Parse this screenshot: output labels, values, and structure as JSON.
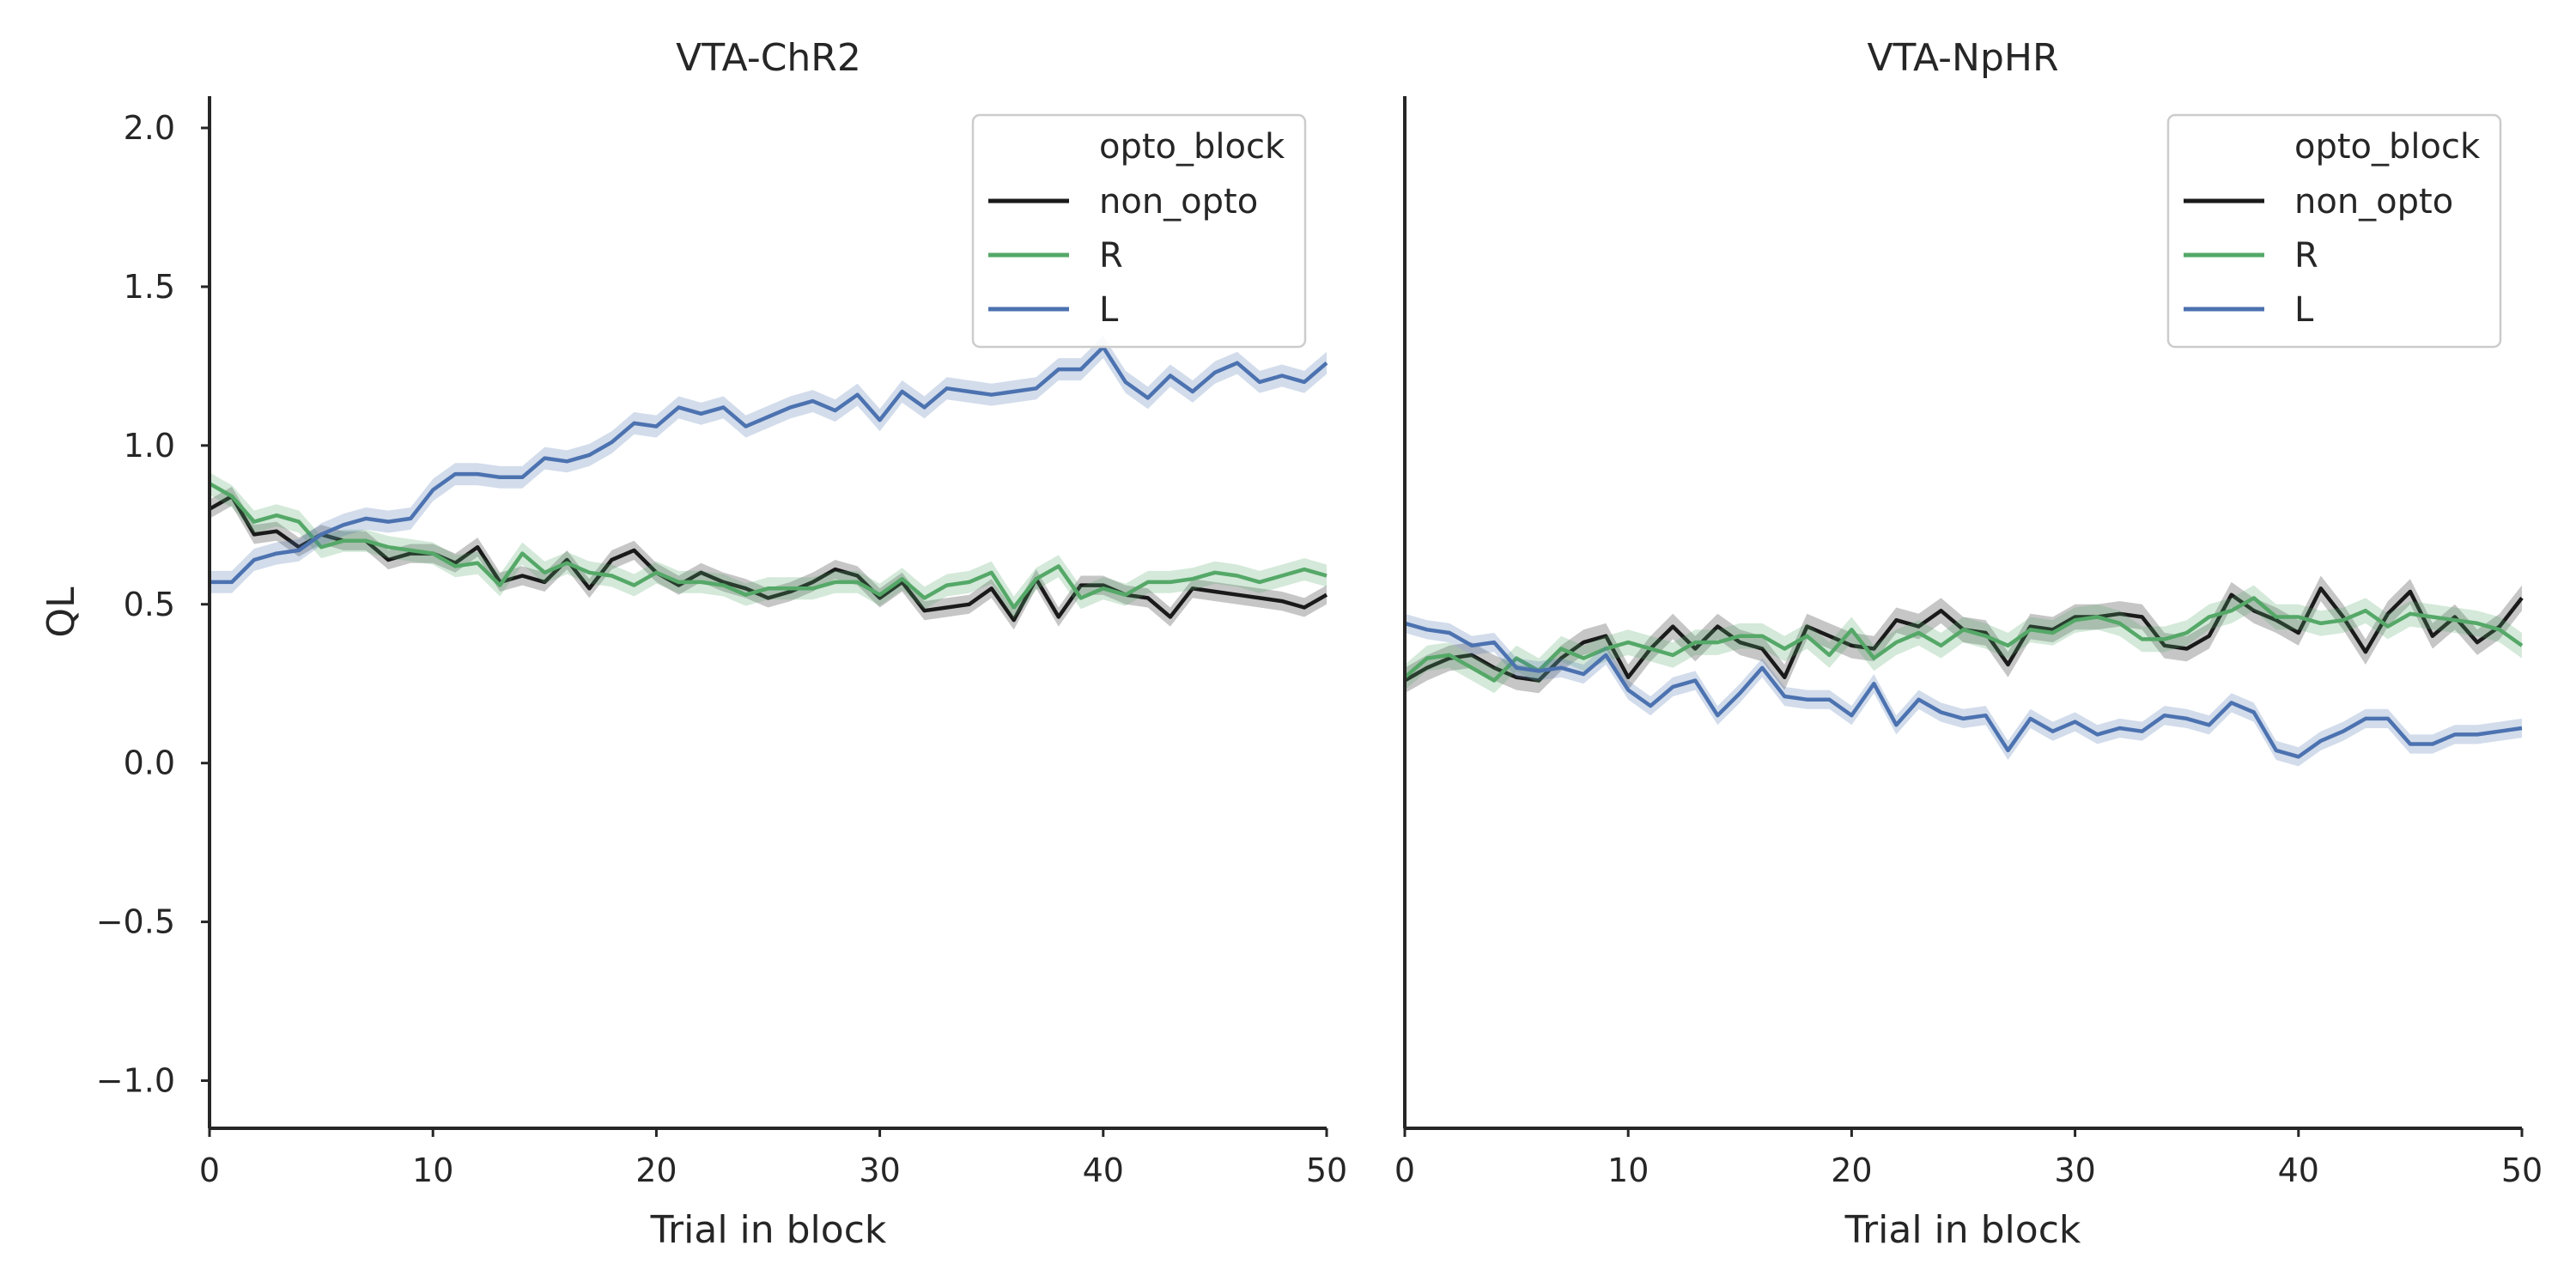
{
  "chart_data": [
    {
      "type": "line",
      "title": "VTA-ChR2",
      "xlabel": "Trial in block",
      "ylabel": "QL",
      "xlim": [
        0,
        50
      ],
      "ylim": [
        -1.15,
        2.1
      ],
      "xticks": [
        0,
        10,
        20,
        30,
        40,
        50
      ],
      "yticks": [
        -1.0,
        -0.5,
        0.0,
        0.5,
        1.0,
        1.5,
        2.0
      ],
      "ytick_labels": [
        "−1.0",
        "−0.5",
        "0.0",
        "0.5",
        "1.0",
        "1.5",
        "2.0"
      ],
      "grid": false,
      "legend": {
        "title": "opto_block",
        "placement": "top-right"
      },
      "x": [
        0,
        1,
        2,
        3,
        4,
        5,
        6,
        7,
        8,
        9,
        10,
        11,
        12,
        13,
        14,
        15,
        16,
        17,
        18,
        19,
        20,
        21,
        22,
        23,
        24,
        25,
        26,
        27,
        28,
        29,
        30,
        31,
        32,
        33,
        34,
        35,
        36,
        37,
        38,
        39,
        40,
        41,
        42,
        43,
        44,
        45,
        46,
        47,
        48,
        49,
        50
      ],
      "series": [
        {
          "name": "non_opto",
          "color": "#1a1a1a",
          "ci": 0.03,
          "values": [
            0.8,
            0.84,
            0.72,
            0.73,
            0.68,
            0.72,
            0.7,
            0.7,
            0.64,
            0.66,
            0.66,
            0.63,
            0.68,
            0.57,
            0.59,
            0.57,
            0.64,
            0.55,
            0.64,
            0.67,
            0.6,
            0.56,
            0.6,
            0.57,
            0.55,
            0.52,
            0.54,
            0.57,
            0.61,
            0.59,
            0.52,
            0.57,
            0.48,
            0.49,
            0.5,
            0.55,
            0.45,
            0.58,
            0.46,
            0.56,
            0.56,
            0.53,
            0.52,
            0.46,
            0.55,
            0.54,
            0.53,
            0.52,
            0.51,
            0.49,
            0.53
          ]
        },
        {
          "name": "R",
          "color": "#55a868",
          "ci": 0.035,
          "values": [
            0.88,
            0.84,
            0.76,
            0.78,
            0.76,
            0.68,
            0.7,
            0.7,
            0.68,
            0.67,
            0.66,
            0.62,
            0.63,
            0.56,
            0.66,
            0.6,
            0.63,
            0.6,
            0.59,
            0.56,
            0.6,
            0.57,
            0.57,
            0.56,
            0.53,
            0.55,
            0.55,
            0.55,
            0.57,
            0.57,
            0.53,
            0.58,
            0.52,
            0.56,
            0.57,
            0.6,
            0.49,
            0.58,
            0.62,
            0.52,
            0.55,
            0.53,
            0.57,
            0.57,
            0.58,
            0.6,
            0.59,
            0.57,
            0.59,
            0.61,
            0.59
          ]
        },
        {
          "name": "L",
          "color": "#4c72b0",
          "ci": 0.035,
          "values": [
            0.57,
            0.57,
            0.64,
            0.66,
            0.67,
            0.72,
            0.75,
            0.77,
            0.76,
            0.77,
            0.86,
            0.91,
            0.91,
            0.9,
            0.9,
            0.96,
            0.95,
            0.97,
            1.01,
            1.07,
            1.06,
            1.12,
            1.1,
            1.12,
            1.06,
            1.09,
            1.12,
            1.14,
            1.11,
            1.16,
            1.08,
            1.17,
            1.12,
            1.18,
            1.17,
            1.16,
            1.17,
            1.18,
            1.24,
            1.24,
            1.31,
            1.2,
            1.15,
            1.22,
            1.17,
            1.23,
            1.26,
            1.2,
            1.22,
            1.2,
            1.26
          ]
        }
      ]
    },
    {
      "type": "line",
      "title": "VTA-NpHR",
      "xlabel": "Trial in block",
      "ylabel": "",
      "xlim": [
        0,
        50
      ],
      "ylim": [
        -1.15,
        2.1
      ],
      "xticks": [
        0,
        10,
        20,
        30,
        40,
        50
      ],
      "grid": false,
      "legend": {
        "title": "opto_block",
        "placement": "top-right"
      },
      "x": [
        0,
        1,
        2,
        3,
        4,
        5,
        6,
        7,
        8,
        9,
        10,
        11,
        12,
        13,
        14,
        15,
        16,
        17,
        18,
        19,
        20,
        21,
        22,
        23,
        24,
        25,
        26,
        27,
        28,
        29,
        30,
        31,
        32,
        33,
        34,
        35,
        36,
        37,
        38,
        39,
        40,
        41,
        42,
        43,
        44,
        45,
        46,
        47,
        48,
        49,
        50
      ],
      "series": [
        {
          "name": "non_opto",
          "color": "#1a1a1a",
          "ci": 0.04,
          "values": [
            0.26,
            0.3,
            0.33,
            0.34,
            0.3,
            0.27,
            0.26,
            0.33,
            0.38,
            0.4,
            0.27,
            0.36,
            0.43,
            0.36,
            0.43,
            0.38,
            0.36,
            0.27,
            0.43,
            0.4,
            0.37,
            0.36,
            0.45,
            0.43,
            0.48,
            0.42,
            0.41,
            0.31,
            0.43,
            0.42,
            0.46,
            0.46,
            0.47,
            0.46,
            0.37,
            0.36,
            0.4,
            0.53,
            0.48,
            0.45,
            0.41,
            0.55,
            0.46,
            0.35,
            0.47,
            0.54,
            0.4,
            0.46,
            0.38,
            0.43,
            0.52
          ]
        },
        {
          "name": "R",
          "color": "#55a868",
          "ci": 0.04,
          "values": [
            0.27,
            0.33,
            0.34,
            0.3,
            0.26,
            0.33,
            0.29,
            0.36,
            0.33,
            0.36,
            0.38,
            0.36,
            0.34,
            0.38,
            0.38,
            0.4,
            0.4,
            0.36,
            0.4,
            0.34,
            0.42,
            0.33,
            0.38,
            0.41,
            0.37,
            0.42,
            0.4,
            0.37,
            0.42,
            0.41,
            0.45,
            0.46,
            0.44,
            0.39,
            0.39,
            0.41,
            0.46,
            0.48,
            0.52,
            0.46,
            0.46,
            0.44,
            0.45,
            0.48,
            0.43,
            0.47,
            0.46,
            0.45,
            0.44,
            0.42,
            0.37
          ]
        },
        {
          "name": "L",
          "color": "#4c72b0",
          "ci": 0.03,
          "values": [
            0.44,
            0.42,
            0.41,
            0.37,
            0.38,
            0.3,
            0.29,
            0.3,
            0.28,
            0.34,
            0.23,
            0.18,
            0.24,
            0.26,
            0.15,
            0.22,
            0.3,
            0.21,
            0.2,
            0.2,
            0.15,
            0.25,
            0.12,
            0.2,
            0.16,
            0.14,
            0.15,
            0.04,
            0.14,
            0.1,
            0.13,
            0.09,
            0.11,
            0.1,
            0.15,
            0.14,
            0.12,
            0.19,
            0.16,
            0.04,
            0.02,
            0.07,
            0.1,
            0.14,
            0.14,
            0.06,
            0.06,
            0.09,
            0.09,
            0.1,
            0.11
          ]
        }
      ]
    }
  ]
}
